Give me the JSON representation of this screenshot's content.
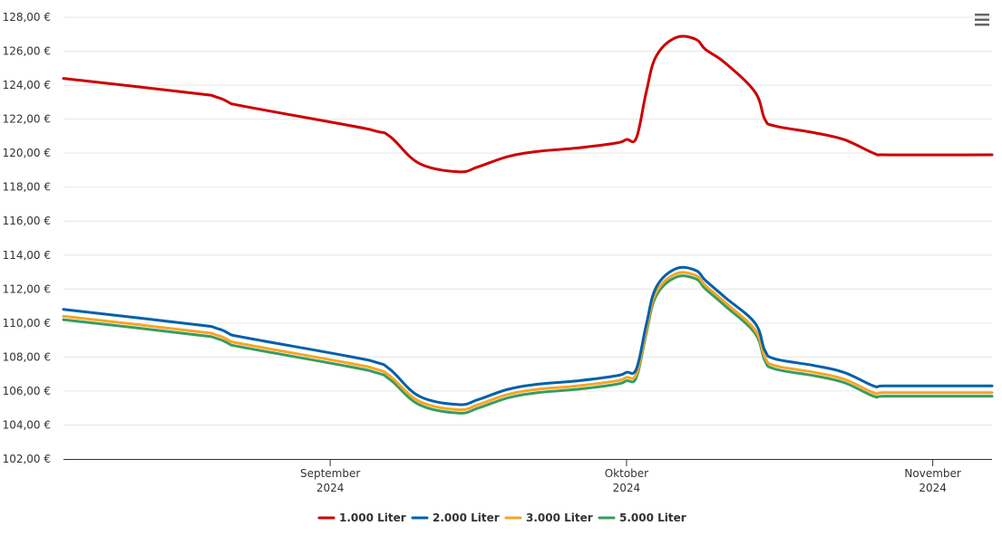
{
  "chart_data": {
    "type": "line",
    "title": "",
    "xlabel": "",
    "ylabel": "",
    "ylim": [
      102,
      128
    ],
    "y_ticks": [
      102,
      104,
      106,
      108,
      110,
      112,
      114,
      116,
      118,
      120,
      122,
      124,
      126,
      128
    ],
    "y_tick_labels": [
      "102,00 €",
      "104,00 €",
      "106,00 €",
      "108,00 €",
      "110,00 €",
      "112,00 €",
      "114,00 €",
      "116,00 €",
      "118,00 €",
      "120,00 €",
      "122,00 €",
      "124,00 €",
      "126,00 €",
      "128,00 €"
    ],
    "xlim": [
      "2024-08-05",
      "2024-11-07"
    ],
    "x_ticks": [
      {
        "date": "2024-09-01",
        "label": "September",
        "year": "2024"
      },
      {
        "date": "2024-10-01",
        "label": "Oktober",
        "year": "2024"
      },
      {
        "date": "2024-11-01",
        "label": "November",
        "year": "2024"
      }
    ],
    "grid": "horizontal",
    "legend_position": "bottom-center",
    "x": [
      "2024-08-05",
      "2024-08-20",
      "2024-08-21",
      "2024-08-22",
      "2024-09-05",
      "2024-09-07",
      "2024-09-10",
      "2024-09-14",
      "2024-09-16",
      "2024-09-19",
      "2024-09-22",
      "2024-09-26",
      "2024-09-30",
      "2024-10-01",
      "2024-10-02",
      "2024-10-03",
      "2024-10-04",
      "2024-10-06",
      "2024-10-08",
      "2024-10-09",
      "2024-10-11",
      "2024-10-14",
      "2024-10-15",
      "2024-10-16",
      "2024-10-20",
      "2024-10-23",
      "2024-10-26",
      "2024-10-27",
      "2024-11-07"
    ],
    "series": [
      {
        "name": "1.000 Liter",
        "color": "#cc0000",
        "values": [
          124.4,
          123.4,
          123.2,
          122.9,
          121.4,
          121.0,
          119.4,
          118.9,
          119.2,
          119.8,
          120.1,
          120.3,
          120.6,
          120.8,
          120.9,
          123.6,
          125.7,
          126.8,
          126.7,
          126.1,
          125.3,
          123.6,
          122.0,
          121.6,
          121.2,
          120.8,
          120.0,
          119.9,
          119.9
        ]
      },
      {
        "name": "2.000 Liter",
        "color": "#0060aa",
        "values": [
          110.8,
          109.8,
          109.6,
          109.3,
          107.8,
          107.3,
          105.7,
          105.2,
          105.5,
          106.1,
          106.4,
          106.6,
          106.9,
          107.1,
          107.3,
          109.9,
          112.1,
          113.2,
          113.1,
          112.5,
          111.5,
          110.0,
          108.4,
          107.9,
          107.5,
          107.1,
          106.3,
          106.3,
          106.3
        ]
      },
      {
        "name": "3.000 Liter",
        "color": "#f5a623",
        "values": [
          110.4,
          109.4,
          109.2,
          108.9,
          107.4,
          106.9,
          105.4,
          104.9,
          105.2,
          105.8,
          106.1,
          106.3,
          106.6,
          106.8,
          107.0,
          109.6,
          111.8,
          112.9,
          112.8,
          112.2,
          111.2,
          109.6,
          108.0,
          107.5,
          107.1,
          106.7,
          105.9,
          105.9,
          105.9
        ]
      },
      {
        "name": "5.000 Liter",
        "color": "#3a9b5e",
        "values": [
          110.2,
          109.2,
          109.0,
          108.7,
          107.2,
          106.7,
          105.2,
          104.7,
          105.0,
          105.6,
          105.9,
          106.1,
          106.4,
          106.6,
          106.8,
          109.4,
          111.6,
          112.7,
          112.6,
          112.0,
          111.0,
          109.4,
          107.8,
          107.3,
          106.9,
          106.5,
          105.7,
          105.7,
          105.7
        ]
      }
    ]
  },
  "menu": {
    "icon": "hamburger-menu-icon"
  }
}
